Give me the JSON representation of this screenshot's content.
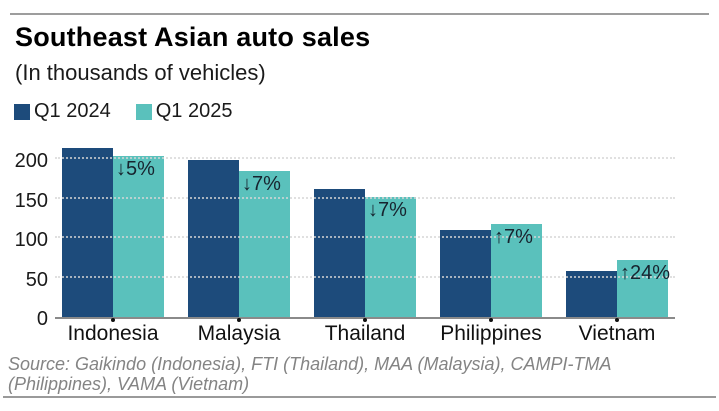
{
  "header": {
    "title": "Southeast Asian auto sales",
    "subtitle": "(In thousands of vehicles)"
  },
  "legend": {
    "items": [
      {
        "label": "Q1 2024",
        "color": "#1d4b7b"
      },
      {
        "label": "Q1 2025",
        "color": "#5ac1bc"
      }
    ]
  },
  "chart_data": {
    "type": "bar",
    "categories": [
      "Indonesia",
      "Malaysia",
      "Thailand",
      "Philippines",
      "Vietnam"
    ],
    "series": [
      {
        "name": "Q1 2024",
        "color": "#1d4b7b",
        "values": [
          215,
          199,
          163,
          110,
          58
        ]
      },
      {
        "name": "Q1 2025",
        "color": "#5ac1bc",
        "values": [
          205,
          185,
          152,
          118,
          72
        ]
      }
    ],
    "annotations": [
      "↓5%",
      "↓7%",
      "↓7%",
      "↑7%",
      "↑24%"
    ],
    "yticks": [
      0,
      50,
      100,
      150,
      200
    ],
    "ylim": [
      0,
      226
    ],
    "grid": "dotted-horizontal",
    "grid_color": "#d6d6d6",
    "axis_color": "#8a8a8a",
    "annotation_color": "#17242f",
    "label_color": "#111111",
    "legend_position": "top-left",
    "title": "Southeast Asian auto sales",
    "subtitle": "(In thousands of vehicles)"
  },
  "footer": {
    "source_lines": [
      "Source: Gaikindo (Indonesia), FTI (Thailand), MAA (Malaysia), CAMPI-TMA",
      "(Philippines), VAMA (Vietnam)"
    ]
  }
}
